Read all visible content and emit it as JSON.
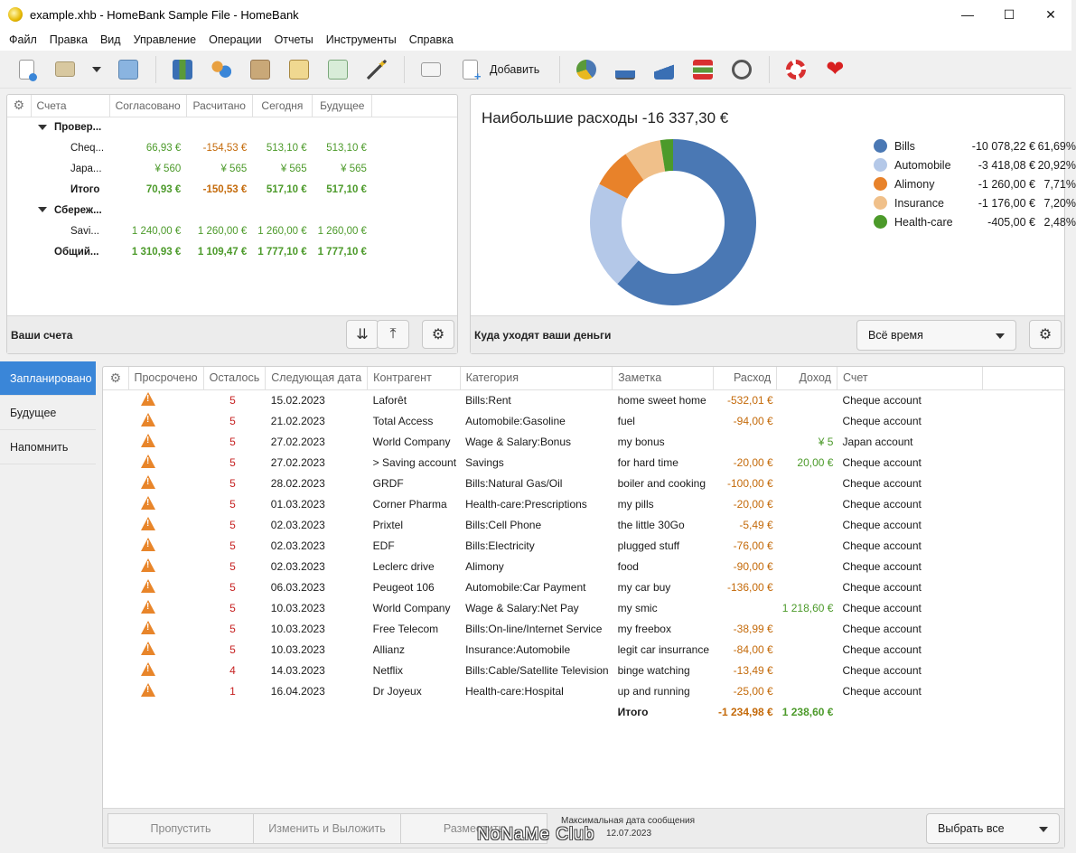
{
  "window": {
    "title": "example.xhb - HomeBank Sample File - HomeBank",
    "min": "—",
    "max": "☐",
    "close": "✕"
  },
  "menu": [
    "Файл",
    "Правка",
    "Вид",
    "Управление",
    "Операции",
    "Отчеты",
    "Инструменты",
    "Справка"
  ],
  "toolbar": {
    "add_label": "Добавить"
  },
  "accounts": {
    "headers": [
      "Счета",
      "Согласовано",
      "Расчитано",
      "Сегодня",
      "Будущее"
    ],
    "footer_title": "Ваши счета",
    "rows": [
      {
        "name": "Провер...",
        "group": true
      },
      {
        "name": "Cheq...",
        "c": "66,93 €",
        "r": "-154,53 €",
        "t": "513,10 €",
        "f": "513,10 €"
      },
      {
        "name": "Japa...",
        "c": "¥ 560",
        "r": "¥ 565",
        "t": "¥ 565",
        "f": "¥ 565"
      },
      {
        "name": "Итого",
        "c": "70,93 €",
        "r": "-150,53 €",
        "t": "517,10 €",
        "f": "517,10 €",
        "total": true
      },
      {
        "name": "Сбереж...",
        "group": true
      },
      {
        "name": "Savi...",
        "c": "1 240,00 €",
        "r": "1 260,00 €",
        "t": "1 260,00 €",
        "f": "1 260,00 €"
      },
      {
        "name": "Общий...",
        "c": "1 310,93 €",
        "r": "1 109,47 €",
        "t": "1 777,10 €",
        "f": "1 777,10 €",
        "total": true
      }
    ]
  },
  "expenses": {
    "title": "Наибольшие расходы -16 337,30 €",
    "footer_title": "Куда уходят ваши деньги",
    "period": "Всё время",
    "legend": [
      {
        "name": "Bills",
        "amount": "-10 078,22 €",
        "pct": "61,69%",
        "color": "#4a78b4"
      },
      {
        "name": "Automobile",
        "amount": "-3 418,08 €",
        "pct": "20,92%",
        "color": "#b4c8e8"
      },
      {
        "name": "Alimony",
        "amount": "-1 260,00 €",
        "pct": "7,71%",
        "color": "#e8822a"
      },
      {
        "name": "Insurance",
        "amount": "-1 176,00 €",
        "pct": "7,20%",
        "color": "#f0c08a"
      },
      {
        "name": "Health-care",
        "amount": "-405,00 €",
        "pct": "2,48%",
        "color": "#4c9a2a"
      }
    ]
  },
  "sidebar": [
    "Запланировано",
    "Будущее",
    "Напомнить"
  ],
  "scheduled": {
    "headers": [
      "Просрочено",
      "Осталось",
      "Следующая дата",
      "Контрагент",
      "Категория",
      "Заметка",
      "Расход",
      "Доход",
      "Счет"
    ],
    "rows": [
      {
        "left": "5",
        "date": "15.02.2023",
        "payee": "Laforêt",
        "cat": "Bills:Rent",
        "memo": "home sweet home",
        "exp": "-532,01 €",
        "inc": "",
        "acc": "Cheque account"
      },
      {
        "left": "5",
        "date": "21.02.2023",
        "payee": "Total Access",
        "cat": "Automobile:Gasoline",
        "memo": "fuel",
        "exp": "-94,00 €",
        "inc": "",
        "acc": "Cheque account"
      },
      {
        "left": "5",
        "date": "27.02.2023",
        "payee": "World Company",
        "cat": "Wage & Salary:Bonus",
        "memo": "my bonus",
        "exp": "",
        "inc": "¥ 5",
        "acc": "Japan account"
      },
      {
        "left": "5",
        "date": "27.02.2023",
        "payee": "> Saving account",
        "cat": "Savings",
        "memo": "for hard time",
        "exp": "-20,00 €",
        "inc": "20,00 €",
        "acc": "Cheque account"
      },
      {
        "left": "5",
        "date": "28.02.2023",
        "payee": "GRDF",
        "cat": "Bills:Natural Gas/Oil",
        "memo": "boiler and cooking",
        "exp": "-100,00 €",
        "inc": "",
        "acc": "Cheque account"
      },
      {
        "left": "5",
        "date": "01.03.2023",
        "payee": "Corner Pharma",
        "cat": "Health-care:Prescriptions",
        "memo": "my pills",
        "exp": "-20,00 €",
        "inc": "",
        "acc": "Cheque account"
      },
      {
        "left": "5",
        "date": "02.03.2023",
        "payee": "Prixtel",
        "cat": "Bills:Cell Phone",
        "memo": "the little 30Go",
        "exp": "-5,49 €",
        "inc": "",
        "acc": "Cheque account"
      },
      {
        "left": "5",
        "date": "02.03.2023",
        "payee": "EDF",
        "cat": "Bills:Electricity",
        "memo": "plugged stuff",
        "exp": "-76,00 €",
        "inc": "",
        "acc": "Cheque account"
      },
      {
        "left": "5",
        "date": "02.03.2023",
        "payee": "Leclerc drive",
        "cat": "Alimony",
        "memo": "food",
        "exp": "-90,00 €",
        "inc": "",
        "acc": "Cheque account"
      },
      {
        "left": "5",
        "date": "06.03.2023",
        "payee": "Peugeot 106",
        "cat": "Automobile:Car Payment",
        "memo": "my car buy",
        "exp": "-136,00 €",
        "inc": "",
        "acc": "Cheque account"
      },
      {
        "left": "5",
        "date": "10.03.2023",
        "payee": "World Company",
        "cat": "Wage & Salary:Net Pay",
        "memo": "my smic",
        "exp": "",
        "inc": "1 218,60 €",
        "acc": "Cheque account"
      },
      {
        "left": "5",
        "date": "10.03.2023",
        "payee": "Free Telecom",
        "cat": "Bills:On-line/Internet Service",
        "memo": "my freebox",
        "exp": "-38,99 €",
        "inc": "",
        "acc": "Cheque account"
      },
      {
        "left": "5",
        "date": "10.03.2023",
        "payee": "Allianz",
        "cat": "Insurance:Automobile",
        "memo": "legit car insurrance",
        "exp": "-84,00 €",
        "inc": "",
        "acc": "Cheque account"
      },
      {
        "left": "4",
        "date": "14.03.2023",
        "payee": "Netflix",
        "cat": "Bills:Cable/Satellite Television",
        "memo": "binge watching",
        "exp": "-13,49 €",
        "inc": "",
        "acc": "Cheque account"
      },
      {
        "left": "1",
        "date": "16.04.2023",
        "payee": "Dr Joyeux",
        "cat": "Health-care:Hospital",
        "memo": "up and running",
        "exp": "-25,00 €",
        "inc": "",
        "acc": "Cheque account"
      }
    ],
    "total": {
      "label": "Итого",
      "exp": "-1 234,98 €",
      "inc": "1 238,60 €"
    },
    "footer": {
      "skip": "Пропустить",
      "edit_post": "Изменить и Выложить",
      "post": "Разместить",
      "maxdate_label": "Максимальная дата сообщения",
      "maxdate": "12.07.2023",
      "select_all": "Выбрать все"
    }
  },
  "watermark": "NoNaMe Club"
}
